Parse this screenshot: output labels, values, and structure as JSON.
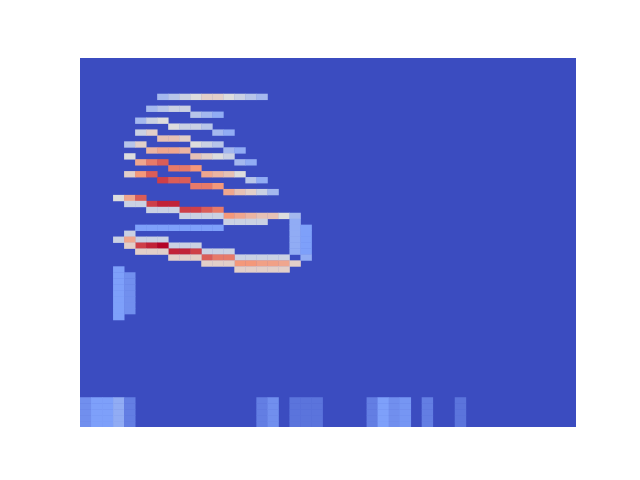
{
  "chart_data": {
    "type": "heatmap",
    "xlim": [
      0,
      45
    ],
    "ylim": [
      0,
      62
    ],
    "zlim": [
      0,
      1
    ],
    "tick_labels": false,
    "cells": [
      [
        7,
        6,
        0.35
      ],
      [
        8,
        6,
        0.4
      ],
      [
        9,
        6,
        0.45
      ],
      [
        10,
        6,
        0.5
      ],
      [
        11,
        6,
        0.55
      ],
      [
        12,
        6,
        0.55
      ],
      [
        13,
        6,
        0.5
      ],
      [
        14,
        6,
        0.45
      ],
      [
        15,
        6,
        0.4
      ],
      [
        16,
        6,
        0.35
      ],
      [
        6,
        8,
        0.35
      ],
      [
        7,
        8,
        0.4
      ],
      [
        8,
        8,
        0.45
      ],
      [
        9,
        8,
        0.45
      ],
      [
        10,
        9,
        0.4
      ],
      [
        11,
        9,
        0.35
      ],
      [
        12,
        9,
        0.3
      ],
      [
        5,
        10,
        0.35
      ],
      [
        6,
        10,
        0.45
      ],
      [
        7,
        10,
        0.5
      ],
      [
        8,
        11,
        0.5
      ],
      [
        9,
        11,
        0.45
      ],
      [
        10,
        11,
        0.45
      ],
      [
        11,
        11,
        0.4
      ],
      [
        12,
        12,
        0.35
      ],
      [
        13,
        12,
        0.3
      ],
      [
        5,
        12,
        0.45
      ],
      [
        6,
        12,
        0.55
      ],
      [
        7,
        13,
        0.6
      ],
      [
        8,
        13,
        0.6
      ],
      [
        9,
        13,
        0.55
      ],
      [
        10,
        14,
        0.5
      ],
      [
        11,
        14,
        0.45
      ],
      [
        12,
        14,
        0.4
      ],
      [
        13,
        15,
        0.35
      ],
      [
        14,
        15,
        0.3
      ],
      [
        4,
        14,
        0.4
      ],
      [
        5,
        14,
        0.55
      ],
      [
        6,
        15,
        0.65
      ],
      [
        7,
        15,
        0.7
      ],
      [
        8,
        15,
        0.7
      ],
      [
        9,
        15,
        0.65
      ],
      [
        10,
        16,
        0.6
      ],
      [
        11,
        16,
        0.55
      ],
      [
        12,
        16,
        0.5
      ],
      [
        13,
        16,
        0.45
      ],
      [
        14,
        17,
        0.35
      ],
      [
        15,
        17,
        0.3
      ],
      [
        4,
        16,
        0.5
      ],
      [
        5,
        17,
        0.7
      ],
      [
        6,
        17,
        0.8
      ],
      [
        7,
        17,
        0.85
      ],
      [
        8,
        18,
        0.8
      ],
      [
        9,
        18,
        0.8
      ],
      [
        10,
        18,
        0.75
      ],
      [
        11,
        19,
        0.7
      ],
      [
        12,
        19,
        0.65
      ],
      [
        13,
        19,
        0.6
      ],
      [
        14,
        19,
        0.5
      ],
      [
        15,
        20,
        0.4
      ],
      [
        16,
        20,
        0.3
      ],
      [
        4,
        19,
        0.55
      ],
      [
        5,
        19,
        0.75
      ],
      [
        6,
        19,
        0.85
      ],
      [
        7,
        20,
        0.9
      ],
      [
        8,
        20,
        0.85
      ],
      [
        9,
        20,
        0.85
      ],
      [
        10,
        21,
        0.8
      ],
      [
        11,
        21,
        0.8
      ],
      [
        12,
        21,
        0.75
      ],
      [
        13,
        22,
        0.7
      ],
      [
        14,
        22,
        0.6
      ],
      [
        15,
        22,
        0.55
      ],
      [
        16,
        22,
        0.45
      ],
      [
        17,
        22,
        0.35
      ],
      [
        3,
        23,
        0.5
      ],
      [
        4,
        23,
        0.7
      ],
      [
        5,
        23,
        0.85
      ],
      [
        6,
        24,
        0.9
      ],
      [
        7,
        24,
        0.95
      ],
      [
        8,
        24,
        0.95
      ],
      [
        9,
        25,
        0.9
      ],
      [
        10,
        25,
        0.9
      ],
      [
        11,
        25,
        0.85
      ],
      [
        12,
        25,
        0.8
      ],
      [
        13,
        26,
        0.75
      ],
      [
        14,
        26,
        0.7
      ],
      [
        15,
        26,
        0.65
      ],
      [
        16,
        26,
        0.6
      ],
      [
        17,
        26,
        0.6
      ],
      [
        18,
        26,
        0.5
      ],
      [
        19,
        26,
        0.35
      ],
      [
        4,
        24,
        0.45
      ],
      [
        5,
        24,
        0.45
      ],
      [
        6,
        25,
        0.45
      ],
      [
        7,
        25,
        0.45
      ],
      [
        8,
        25,
        0.45
      ],
      [
        9,
        26,
        0.45
      ],
      [
        10,
        26,
        0.45
      ],
      [
        11,
        26,
        0.45
      ],
      [
        12,
        26,
        0.45
      ],
      [
        13,
        27,
        0.45
      ],
      [
        14,
        27,
        0.45
      ],
      [
        15,
        27,
        0.45
      ],
      [
        16,
        27,
        0.45
      ],
      [
        5,
        28,
        0.25
      ],
      [
        6,
        28,
        0.25
      ],
      [
        7,
        28,
        0.25
      ],
      [
        8,
        28,
        0.25
      ],
      [
        9,
        28,
        0.25
      ],
      [
        10,
        28,
        0.25
      ],
      [
        11,
        28,
        0.25
      ],
      [
        12,
        28,
        0.25
      ],
      [
        19,
        27,
        0.3
      ],
      [
        19,
        28,
        0.3
      ],
      [
        19,
        29,
        0.3
      ],
      [
        19,
        30,
        0.3
      ],
      [
        19,
        31,
        0.3
      ],
      [
        19,
        32,
        0.3
      ],
      [
        20,
        28,
        0.25
      ],
      [
        20,
        29,
        0.25
      ],
      [
        20,
        30,
        0.25
      ],
      [
        20,
        31,
        0.25
      ],
      [
        20,
        32,
        0.25
      ],
      [
        4,
        29,
        0.45
      ],
      [
        5,
        30,
        0.45
      ],
      [
        6,
        30,
        0.45
      ],
      [
        7,
        30,
        0.45
      ],
      [
        8,
        31,
        0.45
      ],
      [
        9,
        31,
        0.45
      ],
      [
        10,
        31,
        0.45
      ],
      [
        11,
        32,
        0.45
      ],
      [
        12,
        32,
        0.45
      ],
      [
        13,
        32,
        0.45
      ],
      [
        14,
        33,
        0.45
      ],
      [
        15,
        33,
        0.45
      ],
      [
        16,
        33,
        0.45
      ],
      [
        17,
        33,
        0.45
      ],
      [
        18,
        33,
        0.45
      ],
      [
        3,
        30,
        0.45
      ],
      [
        4,
        30,
        0.7
      ],
      [
        5,
        31,
        0.9
      ],
      [
        6,
        31,
        0.95
      ],
      [
        7,
        31,
        1.0
      ],
      [
        8,
        32,
        0.95
      ],
      [
        9,
        32,
        0.95
      ],
      [
        10,
        32,
        0.9
      ],
      [
        11,
        33,
        0.85
      ],
      [
        12,
        33,
        0.8
      ],
      [
        13,
        33,
        0.8
      ],
      [
        14,
        34,
        0.75
      ],
      [
        15,
        34,
        0.75
      ],
      [
        16,
        34,
        0.72
      ],
      [
        17,
        34,
        0.72
      ],
      [
        18,
        34,
        0.7
      ],
      [
        19,
        34,
        0.55
      ],
      [
        20,
        33,
        0.3
      ],
      [
        4,
        31,
        0.55
      ],
      [
        5,
        32,
        0.55
      ],
      [
        6,
        32,
        0.55
      ],
      [
        7,
        32,
        0.55
      ],
      [
        8,
        33,
        0.55
      ],
      [
        9,
        33,
        0.55
      ],
      [
        10,
        33,
        0.55
      ],
      [
        11,
        34,
        0.55
      ],
      [
        12,
        34,
        0.55
      ],
      [
        13,
        34,
        0.55
      ],
      [
        14,
        35,
        0.55
      ],
      [
        15,
        35,
        0.55
      ],
      [
        16,
        35,
        0.55
      ],
      [
        17,
        35,
        0.55
      ],
      [
        18,
        35,
        0.55
      ],
      [
        3,
        35,
        0.25
      ],
      [
        3,
        36,
        0.25
      ],
      [
        3,
        37,
        0.25
      ],
      [
        3,
        38,
        0.25
      ],
      [
        3,
        39,
        0.25
      ],
      [
        3,
        40,
        0.25
      ],
      [
        3,
        41,
        0.25
      ],
      [
        3,
        42,
        0.25
      ],
      [
        3,
        43,
        0.25
      ],
      [
        4,
        36,
        0.2
      ],
      [
        4,
        37,
        0.2
      ],
      [
        4,
        38,
        0.2
      ],
      [
        4,
        39,
        0.2
      ],
      [
        4,
        40,
        0.2
      ],
      [
        4,
        41,
        0.2
      ],
      [
        4,
        42,
        0.2
      ],
      [
        0,
        57,
        0.2
      ],
      [
        0,
        58,
        0.2
      ],
      [
        0,
        59,
        0.2
      ],
      [
        0,
        60,
        0.2
      ],
      [
        0,
        61,
        0.2
      ],
      [
        1,
        57,
        0.25
      ],
      [
        1,
        58,
        0.25
      ],
      [
        1,
        59,
        0.25
      ],
      [
        1,
        60,
        0.25
      ],
      [
        1,
        61,
        0.25
      ],
      [
        2,
        57,
        0.25
      ],
      [
        2,
        58,
        0.25
      ],
      [
        2,
        59,
        0.25
      ],
      [
        2,
        60,
        0.25
      ],
      [
        2,
        61,
        0.25
      ],
      [
        3,
        57,
        0.3
      ],
      [
        3,
        58,
        0.3
      ],
      [
        3,
        59,
        0.3
      ],
      [
        3,
        60,
        0.3
      ],
      [
        3,
        61,
        0.3
      ],
      [
        4,
        57,
        0.15
      ],
      [
        4,
        58,
        0.15
      ],
      [
        4,
        59,
        0.15
      ],
      [
        4,
        60,
        0.15
      ],
      [
        4,
        61,
        0.15
      ],
      [
        16,
        57,
        0.15
      ],
      [
        16,
        58,
        0.15
      ],
      [
        16,
        59,
        0.15
      ],
      [
        16,
        60,
        0.15
      ],
      [
        16,
        61,
        0.15
      ],
      [
        17,
        57,
        0.2
      ],
      [
        17,
        58,
        0.2
      ],
      [
        17,
        59,
        0.2
      ],
      [
        17,
        60,
        0.2
      ],
      [
        17,
        61,
        0.2
      ],
      [
        19,
        57,
        0.12
      ],
      [
        19,
        58,
        0.12
      ],
      [
        19,
        59,
        0.12
      ],
      [
        19,
        60,
        0.12
      ],
      [
        19,
        61,
        0.12
      ],
      [
        20,
        57,
        0.12
      ],
      [
        20,
        58,
        0.12
      ],
      [
        20,
        59,
        0.12
      ],
      [
        20,
        60,
        0.12
      ],
      [
        20,
        61,
        0.12
      ],
      [
        21,
        57,
        0.12
      ],
      [
        21,
        58,
        0.12
      ],
      [
        21,
        59,
        0.12
      ],
      [
        21,
        60,
        0.12
      ],
      [
        21,
        61,
        0.12
      ],
      [
        26,
        57,
        0.15
      ],
      [
        26,
        58,
        0.15
      ],
      [
        26,
        59,
        0.15
      ],
      [
        26,
        60,
        0.15
      ],
      [
        26,
        61,
        0.15
      ],
      [
        27,
        57,
        0.25
      ],
      [
        27,
        58,
        0.25
      ],
      [
        27,
        59,
        0.25
      ],
      [
        27,
        60,
        0.25
      ],
      [
        27,
        61,
        0.25
      ],
      [
        28,
        57,
        0.2
      ],
      [
        28,
        58,
        0.2
      ],
      [
        28,
        59,
        0.2
      ],
      [
        28,
        60,
        0.2
      ],
      [
        28,
        61,
        0.2
      ],
      [
        29,
        57,
        0.22
      ],
      [
        29,
        58,
        0.22
      ],
      [
        29,
        59,
        0.22
      ],
      [
        29,
        60,
        0.22
      ],
      [
        29,
        61,
        0.22
      ],
      [
        31,
        57,
        0.15
      ],
      [
        31,
        58,
        0.15
      ],
      [
        31,
        59,
        0.15
      ],
      [
        31,
        60,
        0.15
      ],
      [
        31,
        61,
        0.15
      ],
      [
        34,
        57,
        0.12
      ],
      [
        34,
        58,
        0.12
      ],
      [
        34,
        59,
        0.12
      ],
      [
        34,
        60,
        0.12
      ],
      [
        34,
        61,
        0.12
      ]
    ]
  }
}
